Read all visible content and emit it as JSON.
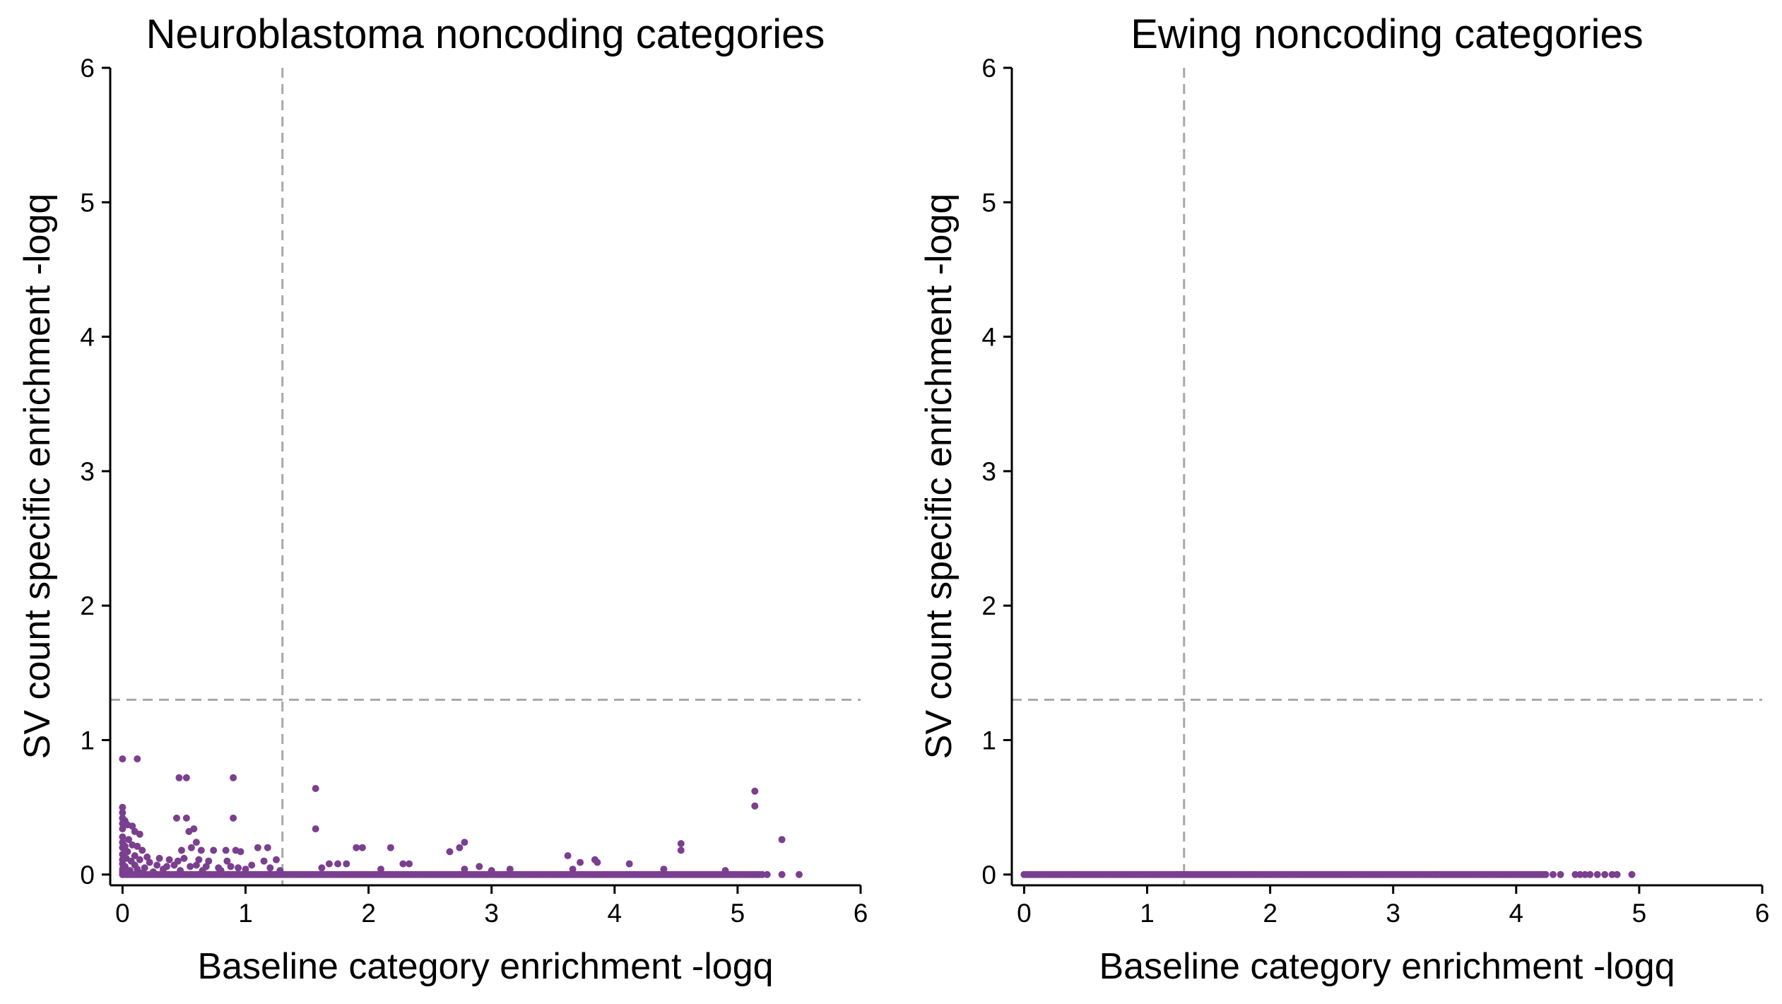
{
  "colors": {
    "points": "#7b3f8f",
    "reference_line": "#a8a8a8",
    "axis": "#000000"
  },
  "chart_data": [
    {
      "type": "scatter",
      "title": "Neuroblastoma noncoding categories",
      "xlabel": "Baseline category enrichment -logq",
      "ylabel": "SV count specific enrichment -logq",
      "xlim": [
        -0.1,
        6
      ],
      "ylim": [
        -0.08,
        6
      ],
      "xticks": [
        0,
        1,
        2,
        3,
        4,
        5,
        6
      ],
      "yticks": [
        0,
        1,
        2,
        3,
        4,
        5,
        6
      ],
      "xtick_labels": [
        "0",
        "1",
        "2",
        "3",
        "4",
        "5",
        "6"
      ],
      "ytick_labels": [
        "0",
        "1",
        "2",
        "3",
        "4",
        "5",
        "6"
      ],
      "grid": false,
      "legend": "none",
      "reference_lines": {
        "x": 1.3,
        "y": 1.3
      },
      "series": [
        {
          "color": "#7b3f8f",
          "points": [
            [
              0.0,
              0.86
            ],
            [
              0.12,
              0.86
            ],
            [
              0.46,
              0.72
            ],
            [
              0.52,
              0.72
            ],
            [
              0.9,
              0.72
            ],
            [
              1.57,
              0.64
            ],
            [
              5.14,
              0.62
            ],
            [
              5.14,
              0.51
            ],
            [
              0.0,
              0.5
            ],
            [
              0.0,
              0.46
            ],
            [
              0.0,
              0.42
            ],
            [
              0.02,
              0.4
            ],
            [
              0.0,
              0.38
            ],
            [
              0.04,
              0.37
            ],
            [
              0.08,
              0.36
            ],
            [
              0.0,
              0.34
            ],
            [
              0.1,
              0.32
            ],
            [
              0.14,
              0.3
            ],
            [
              0.0,
              0.28
            ],
            [
              0.05,
              0.26
            ],
            [
              0.0,
              0.24
            ],
            [
              0.08,
              0.22
            ],
            [
              0.02,
              0.21
            ],
            [
              0.12,
              0.21
            ],
            [
              0.0,
              0.2
            ],
            [
              0.16,
              0.18
            ],
            [
              0.04,
              0.17
            ],
            [
              0.0,
              0.15
            ],
            [
              0.1,
              0.14
            ],
            [
              0.2,
              0.13
            ],
            [
              0.03,
              0.12
            ],
            [
              0.0,
              0.11
            ],
            [
              0.14,
              0.11
            ],
            [
              0.07,
              0.1
            ],
            [
              0.22,
              0.09
            ],
            [
              0.0,
              0.08
            ],
            [
              0.1,
              0.07
            ],
            [
              0.02,
              0.06
            ],
            [
              0.18,
              0.05
            ],
            [
              0.0,
              0.04
            ],
            [
              0.12,
              0.04
            ],
            [
              0.06,
              0.03
            ],
            [
              0.0,
              0.02
            ],
            [
              0.25,
              0.02
            ],
            [
              0.03,
              0.01
            ],
            [
              0.15,
              0.01
            ],
            [
              0.44,
              0.42
            ],
            [
              0.52,
              0.42
            ],
            [
              0.9,
              0.42
            ],
            [
              0.58,
              0.34
            ],
            [
              0.54,
              0.32
            ],
            [
              0.6,
              0.24
            ],
            [
              0.56,
              0.2
            ],
            [
              0.48,
              0.18
            ],
            [
              0.64,
              0.18
            ],
            [
              0.74,
              0.18
            ],
            [
              0.84,
              0.18
            ],
            [
              0.92,
              0.18
            ],
            [
              0.96,
              0.17
            ],
            [
              0.3,
              0.12
            ],
            [
              0.38,
              0.11
            ],
            [
              0.45,
              0.1
            ],
            [
              0.5,
              0.12
            ],
            [
              0.62,
              0.11
            ],
            [
              0.7,
              0.1
            ],
            [
              0.85,
              0.1
            ],
            [
              0.28,
              0.07
            ],
            [
              0.36,
              0.06
            ],
            [
              0.42,
              0.07
            ],
            [
              0.55,
              0.06
            ],
            [
              0.6,
              0.07
            ],
            [
              0.68,
              0.06
            ],
            [
              0.78,
              0.05
            ],
            [
              0.88,
              0.06
            ],
            [
              0.94,
              0.05
            ],
            [
              1.0,
              0.04
            ],
            [
              0.33,
              0.04
            ],
            [
              0.47,
              0.03
            ],
            [
              0.65,
              0.03
            ],
            [
              0.8,
              0.03
            ],
            [
              1.1,
              0.2
            ],
            [
              1.18,
              0.2
            ],
            [
              1.25,
              0.11
            ],
            [
              1.2,
              0.05
            ],
            [
              1.05,
              0.07
            ],
            [
              1.15,
              0.1
            ],
            [
              1.28,
              0.03
            ],
            [
              1.57,
              0.34
            ],
            [
              1.68,
              0.08
            ],
            [
              1.75,
              0.08
            ],
            [
              1.82,
              0.08
            ],
            [
              1.62,
              0.05
            ],
            [
              1.9,
              0.2
            ],
            [
              1.95,
              0.2
            ],
            [
              2.18,
              0.2
            ],
            [
              2.28,
              0.08
            ],
            [
              2.33,
              0.08
            ],
            [
              2.1,
              0.04
            ],
            [
              2.74,
              0.2
            ],
            [
              2.78,
              0.24
            ],
            [
              2.66,
              0.17
            ],
            [
              2.78,
              0.04
            ],
            [
              2.9,
              0.06
            ],
            [
              3.0,
              0.03
            ],
            [
              3.15,
              0.04
            ],
            [
              3.62,
              0.14
            ],
            [
              3.72,
              0.09
            ],
            [
              3.84,
              0.11
            ],
            [
              3.86,
              0.09
            ],
            [
              3.66,
              0.04
            ],
            [
              4.12,
              0.08
            ],
            [
              4.54,
              0.18
            ],
            [
              4.54,
              0.23
            ],
            [
              5.36,
              0.26
            ],
            [
              4.4,
              0.04
            ],
            [
              4.9,
              0.03
            ],
            [
              5.24,
              0.0
            ],
            [
              5.36,
              0.0
            ],
            [
              5.5,
              0.0
            ]
          ],
          "baseline_points": {
            "y": 0.0,
            "x_from": 0.0,
            "x_to": 5.2,
            "step": 0.02
          }
        }
      ]
    },
    {
      "type": "scatter",
      "title": "Ewing noncoding categories",
      "xlabel": "Baseline category enrichment -logq",
      "ylabel": "SV count specific enrichment -logq",
      "xlim": [
        -0.1,
        6
      ],
      "ylim": [
        -0.08,
        6
      ],
      "xticks": [
        0,
        1,
        2,
        3,
        4,
        5,
        6
      ],
      "yticks": [
        0,
        1,
        2,
        3,
        4,
        5,
        6
      ],
      "xtick_labels": [
        "0",
        "1",
        "2",
        "3",
        "4",
        "5",
        "6"
      ],
      "ytick_labels": [
        "0",
        "1",
        "2",
        "3",
        "4",
        "5",
        "6"
      ],
      "grid": false,
      "legend": "none",
      "reference_lines": {
        "x": 1.3,
        "y": 1.3
      },
      "series": [
        {
          "color": "#7b3f8f",
          "points": [
            [
              4.3,
              0.0
            ],
            [
              4.36,
              0.0
            ],
            [
              4.48,
              0.0
            ],
            [
              4.52,
              0.0
            ],
            [
              4.56,
              0.0
            ],
            [
              4.6,
              0.0
            ],
            [
              4.66,
              0.0
            ],
            [
              4.72,
              0.0
            ],
            [
              4.78,
              0.0
            ],
            [
              4.82,
              0.0
            ],
            [
              4.94,
              0.0
            ]
          ],
          "baseline_points": {
            "y": 0.0,
            "x_from": 0.0,
            "x_to": 4.24,
            "step": 0.02
          }
        }
      ]
    }
  ]
}
